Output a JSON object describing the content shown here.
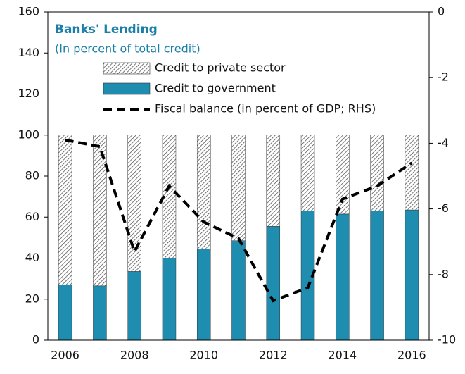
{
  "chart_data": {
    "type": "bar",
    "stacked": true,
    "title": "Banks' Lending",
    "subtitle": "(In percent of total credit)",
    "categories": [
      "2006",
      null,
      "2008",
      null,
      "2010",
      null,
      "2012",
      null,
      "2014",
      null,
      "2016"
    ],
    "series": [
      {
        "name": "Credit to private sector",
        "color": "#444444",
        "hatched": true,
        "values": [
          73,
          73.5,
          66.5,
          60,
          55.5,
          51.5,
          44.5,
          37,
          38.5,
          37,
          36.5
        ]
      },
      {
        "name": "Credit to government",
        "color": "#1f8db0",
        "values": [
          27,
          26.5,
          33.5,
          40,
          44.5,
          48.5,
          55.5,
          63,
          61.5,
          63,
          63.5
        ]
      },
      {
        "name": "Fiscal balance (in percent of GDP; RHS)",
        "color": "#000000",
        "type": "line",
        "dashed": true,
        "axis": "y2",
        "values": [
          -3.9,
          -4.1,
          -7.3,
          -5.3,
          -6.4,
          -6.9,
          -8.8,
          -8.4,
          -5.7,
          -5.3,
          -4.6
        ]
      }
    ],
    "ylim": [
      0,
      160
    ],
    "yticks": [
      0,
      20,
      40,
      60,
      80,
      100,
      120,
      140,
      160
    ],
    "y2lim": [
      -10,
      0
    ],
    "y2ticks": [
      0,
      -2,
      -4,
      -6,
      -8,
      -10
    ],
    "title_color": "#1a7fa8"
  }
}
